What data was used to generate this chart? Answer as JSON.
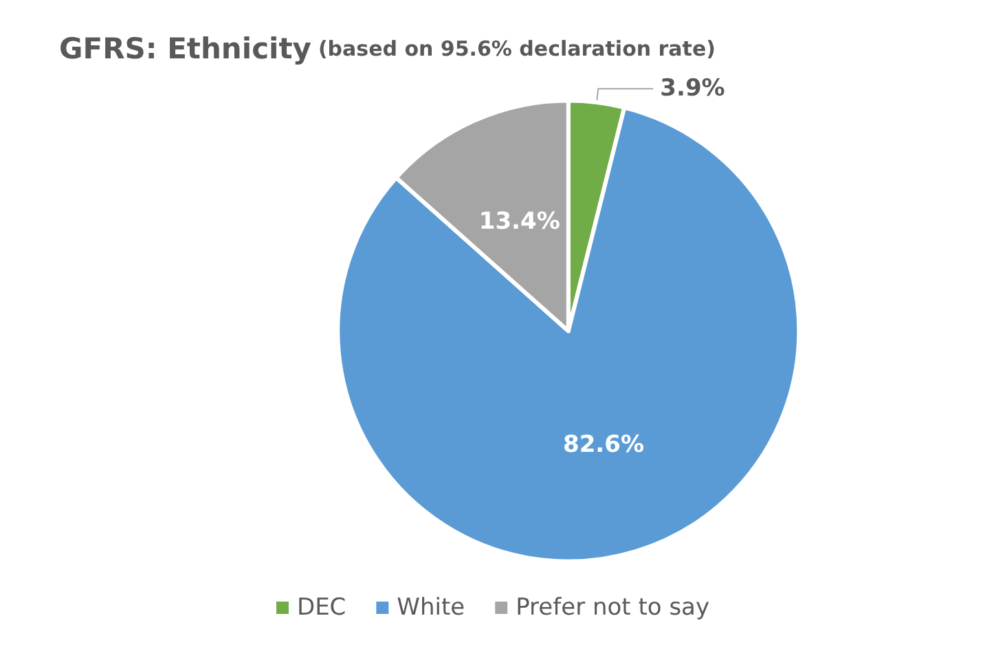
{
  "chart_data": {
    "type": "pie",
    "title": "GFRS: Ethnicity",
    "subtitle": "(based on 95.6% declaration rate)",
    "categories": [
      "DEC",
      "White",
      "Prefer not to say"
    ],
    "values": [
      3.9,
      82.6,
      13.4
    ],
    "value_labels": [
      "3.9%",
      "82.6%",
      "13.4%"
    ],
    "colors": [
      "#70ad47",
      "#5b9bd5",
      "#a5a5a5"
    ],
    "legend": "bottom"
  }
}
